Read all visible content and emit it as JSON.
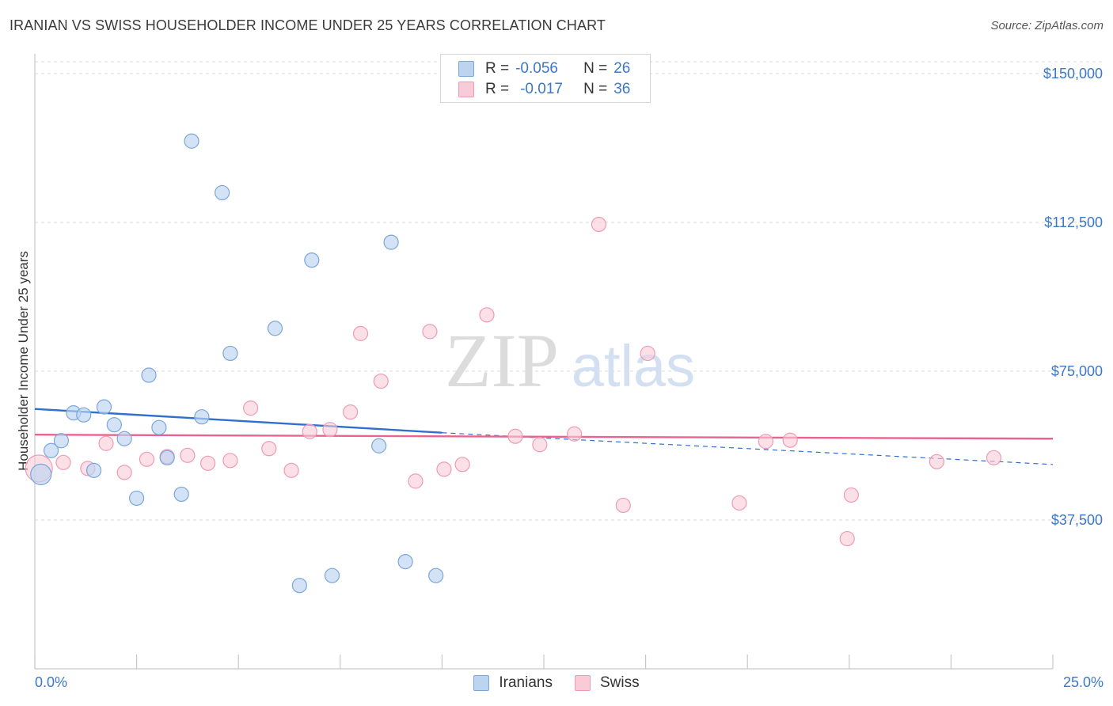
{
  "header": {
    "title": "IRANIAN VS SWISS HOUSEHOLDER INCOME UNDER 25 YEARS CORRELATION CHART",
    "source": "Source: ZipAtlas.com"
  },
  "watermark": {
    "zip": "ZIP",
    "atlas": "atlas"
  },
  "colors": {
    "iranians_fill": "#bcd4f0",
    "iranians_stroke": "#7aa6dc",
    "iranians_line": "#2f6fce",
    "swiss_fill": "#f9cbd8",
    "swiss_stroke": "#ee9bb5",
    "swiss_line": "#e8648e",
    "tick_label": "#3b78c8",
    "grid": "#d9d9d9"
  },
  "legend_top": {
    "rows": [
      {
        "r_label": "R =",
        "r_value": "-0.056",
        "n_label": "N =",
        "n_value": "26"
      },
      {
        "r_label": "R =",
        "r_value": "-0.017",
        "n_label": "N =",
        "n_value": "36"
      }
    ]
  },
  "legend_bottom": {
    "items": [
      "Iranians",
      "Swiss"
    ]
  },
  "chart_data": {
    "type": "scatter",
    "title": "IRANIAN VS SWISS HOUSEHOLDER INCOME UNDER 25 YEARS CORRELATION CHART",
    "xlabel": "",
    "ylabel": "Householder Income Under 25 years",
    "xlim": [
      0,
      25
    ],
    "ylim": [
      0,
      153000
    ],
    "x_tick_labels": [
      "0.0%",
      "25.0%"
    ],
    "y_ticks": [
      37500,
      75000,
      112500,
      150000
    ],
    "y_tick_labels": [
      "$37,500",
      "$75,000",
      "$112,500",
      "$150,000"
    ],
    "grid": true,
    "series": [
      {
        "name": "Iranians",
        "r": -0.056,
        "n": 26,
        "trend": {
          "x": [
            0,
            10,
            25
          ],
          "y": [
            65500,
            59500,
            51500
          ],
          "solid_until": 10
        },
        "points": [
          {
            "x": 0.15,
            "y": 49000,
            "big": true
          },
          {
            "x": 0.4,
            "y": 55000
          },
          {
            "x": 0.65,
            "y": 57500
          },
          {
            "x": 0.95,
            "y": 64500
          },
          {
            "x": 1.2,
            "y": 64000
          },
          {
            "x": 1.45,
            "y": 50000
          },
          {
            "x": 1.7,
            "y": 66000
          },
          {
            "x": 1.95,
            "y": 61500
          },
          {
            "x": 2.2,
            "y": 58000
          },
          {
            "x": 2.5,
            "y": 43000
          },
          {
            "x": 2.8,
            "y": 74000
          },
          {
            "x": 3.05,
            "y": 60800
          },
          {
            "x": 3.25,
            "y": 53200
          },
          {
            "x": 3.6,
            "y": 44000
          },
          {
            "x": 3.85,
            "y": 133000
          },
          {
            "x": 4.1,
            "y": 63500
          },
          {
            "x": 4.6,
            "y": 120000
          },
          {
            "x": 4.8,
            "y": 79500
          },
          {
            "x": 5.9,
            "y": 85800
          },
          {
            "x": 6.5,
            "y": 21000
          },
          {
            "x": 6.8,
            "y": 103000
          },
          {
            "x": 7.3,
            "y": 23500
          },
          {
            "x": 8.45,
            "y": 56200
          },
          {
            "x": 8.75,
            "y": 107500
          },
          {
            "x": 9.1,
            "y": 27000
          },
          {
            "x": 9.85,
            "y": 23500
          }
        ]
      },
      {
        "name": "Swiss",
        "r": -0.017,
        "n": 36,
        "trend": {
          "x": [
            0,
            25
          ],
          "y": [
            59000,
            58000
          ]
        },
        "points": [
          {
            "x": 0.1,
            "y": 50500,
            "big": true
          },
          {
            "x": 0.7,
            "y": 52000
          },
          {
            "x": 1.3,
            "y": 50500
          },
          {
            "x": 1.75,
            "y": 56800
          },
          {
            "x": 2.2,
            "y": 49500
          },
          {
            "x": 2.75,
            "y": 52800
          },
          {
            "x": 3.25,
            "y": 53500
          },
          {
            "x": 3.75,
            "y": 53800
          },
          {
            "x": 4.25,
            "y": 51800
          },
          {
            "x": 4.8,
            "y": 52500
          },
          {
            "x": 5.3,
            "y": 65700
          },
          {
            "x": 5.75,
            "y": 55500
          },
          {
            "x": 6.3,
            "y": 50000
          },
          {
            "x": 6.75,
            "y": 59800
          },
          {
            "x": 7.25,
            "y": 60300
          },
          {
            "x": 7.75,
            "y": 64700
          },
          {
            "x": 8.0,
            "y": 84500
          },
          {
            "x": 8.5,
            "y": 72500
          },
          {
            "x": 9.35,
            "y": 47300
          },
          {
            "x": 9.7,
            "y": 85000
          },
          {
            "x": 10.05,
            "y": 50300
          },
          {
            "x": 10.5,
            "y": 51500
          },
          {
            "x": 11.1,
            "y": 89200
          },
          {
            "x": 11.8,
            "y": 58600
          },
          {
            "x": 12.4,
            "y": 56500
          },
          {
            "x": 13.25,
            "y": 59200
          },
          {
            "x": 13.85,
            "y": 112000
          },
          {
            "x": 14.45,
            "y": 41200
          },
          {
            "x": 15.05,
            "y": 79500
          },
          {
            "x": 17.3,
            "y": 41800
          },
          {
            "x": 17.95,
            "y": 57300
          },
          {
            "x": 18.55,
            "y": 57600
          },
          {
            "x": 19.95,
            "y": 32800
          },
          {
            "x": 20.05,
            "y": 43800
          },
          {
            "x": 22.15,
            "y": 52200
          },
          {
            "x": 23.55,
            "y": 53200
          }
        ]
      }
    ]
  }
}
